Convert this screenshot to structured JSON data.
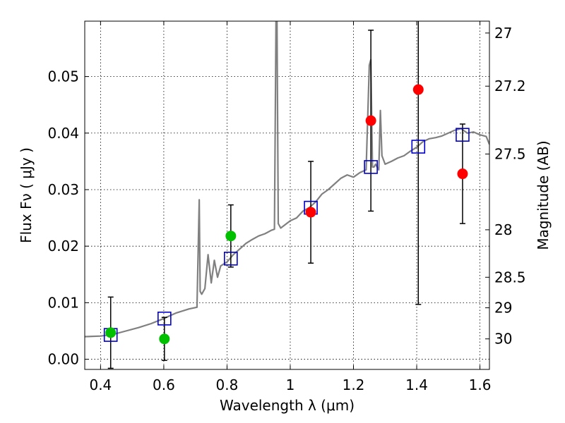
{
  "chart_data": {
    "type": "scatter",
    "xlabel": "Wavelength  λ (μm)",
    "ylabel": "Flux  Fν  ( μJy )",
    "y2label": "Magnitude (AB)",
    "xlim": [
      0.35,
      1.63
    ],
    "ylim": [
      -0.0018,
      0.0598
    ],
    "grid": true,
    "x_ticks": [
      0.4,
      0.6,
      0.8,
      1.0,
      1.2,
      1.4,
      1.6
    ],
    "x_tick_labels": [
      "0.4",
      "0.6",
      "0.8",
      "1",
      "1.2",
      "1.4",
      "1.6"
    ],
    "y_ticks": [
      0.0,
      0.01,
      0.02,
      0.03,
      0.04,
      0.05
    ],
    "y_tick_labels": [
      "0.00",
      "0.01",
      "0.02",
      "0.03",
      "0.04",
      "0.05"
    ],
    "magnitude_ticks": [
      {
        "flux": 0.0577,
        "label": "27"
      },
      {
        "flux": 0.0483,
        "label": "27.2"
      },
      {
        "flux": 0.0363,
        "label": "27.5"
      },
      {
        "flux": 0.0229,
        "label": "28"
      },
      {
        "flux": 0.0145,
        "label": "28.5"
      },
      {
        "flux": 0.0091,
        "label": "29"
      },
      {
        "flux": 0.0036,
        "label": "30"
      }
    ],
    "colors": {
      "template": "#808080",
      "detection": "#ff0000",
      "nondetection": "#00c000",
      "model": "#0000cc",
      "errorbar": "#000000"
    },
    "series": [
      {
        "name": "template spectrum",
        "type": "line",
        "x": [
          0.35,
          0.4,
          0.44,
          0.48,
          0.52,
          0.56,
          0.6,
          0.64,
          0.68,
          0.705,
          0.712,
          0.715,
          0.72,
          0.73,
          0.74,
          0.75,
          0.76,
          0.77,
          0.78,
          0.8,
          0.82,
          0.84,
          0.86,
          0.88,
          0.9,
          0.92,
          0.94,
          0.95,
          0.955,
          0.958,
          0.962,
          0.97,
          1.0,
          1.02,
          1.04,
          1.06,
          1.08,
          1.1,
          1.12,
          1.14,
          1.16,
          1.18,
          1.2,
          1.22,
          1.24,
          1.25,
          1.255,
          1.26,
          1.265,
          1.27,
          1.28,
          1.285,
          1.29,
          1.3,
          1.32,
          1.34,
          1.36,
          1.38,
          1.4,
          1.42,
          1.44,
          1.46,
          1.48,
          1.5,
          1.52,
          1.54,
          1.56,
          1.58,
          1.6,
          1.62,
          1.63
        ],
        "y": [
          0.004,
          0.0041,
          0.0044,
          0.005,
          0.0056,
          0.0063,
          0.0072,
          0.0082,
          0.0089,
          0.0092,
          0.0282,
          0.012,
          0.0115,
          0.0125,
          0.0185,
          0.0135,
          0.0175,
          0.0145,
          0.0165,
          0.0172,
          0.0185,
          0.0195,
          0.0205,
          0.0212,
          0.0218,
          0.0222,
          0.0228,
          0.023,
          0.06,
          0.06,
          0.024,
          0.0232,
          0.0245,
          0.025,
          0.0262,
          0.0268,
          0.0278,
          0.0292,
          0.03,
          0.031,
          0.032,
          0.0326,
          0.0322,
          0.033,
          0.0335,
          0.052,
          0.053,
          0.034,
          0.034,
          0.0345,
          0.0335,
          0.044,
          0.036,
          0.0345,
          0.035,
          0.0356,
          0.036,
          0.0368,
          0.0375,
          0.0385,
          0.039,
          0.0392,
          0.0395,
          0.04,
          0.0405,
          0.0408,
          0.04,
          0.0402,
          0.0397,
          0.0394,
          0.038
        ]
      },
      {
        "name": "detections",
        "type": "scatter",
        "marker": "circle",
        "x": [
          1.065,
          1.255,
          1.405,
          1.545
        ],
        "y": [
          0.026,
          0.0422,
          0.0477,
          0.0328
        ],
        "yerr": [
          0.009,
          0.016,
          0.038,
          0.0088
        ]
      },
      {
        "name": "non-detections",
        "type": "scatter",
        "marker": "circle",
        "x": [
          0.432,
          0.602,
          0.812
        ],
        "y": [
          0.0047,
          0.0036,
          0.0218
        ],
        "yerr": [
          0.0063,
          0.0038,
          0.0055
        ]
      },
      {
        "name": "model photometry",
        "type": "scatter",
        "marker": "open-square",
        "x": [
          0.432,
          0.602,
          0.812,
          1.065,
          1.255,
          1.405,
          1.545
        ],
        "y": [
          0.0043,
          0.0072,
          0.0178,
          0.0268,
          0.034,
          0.0376,
          0.0397
        ]
      }
    ]
  }
}
